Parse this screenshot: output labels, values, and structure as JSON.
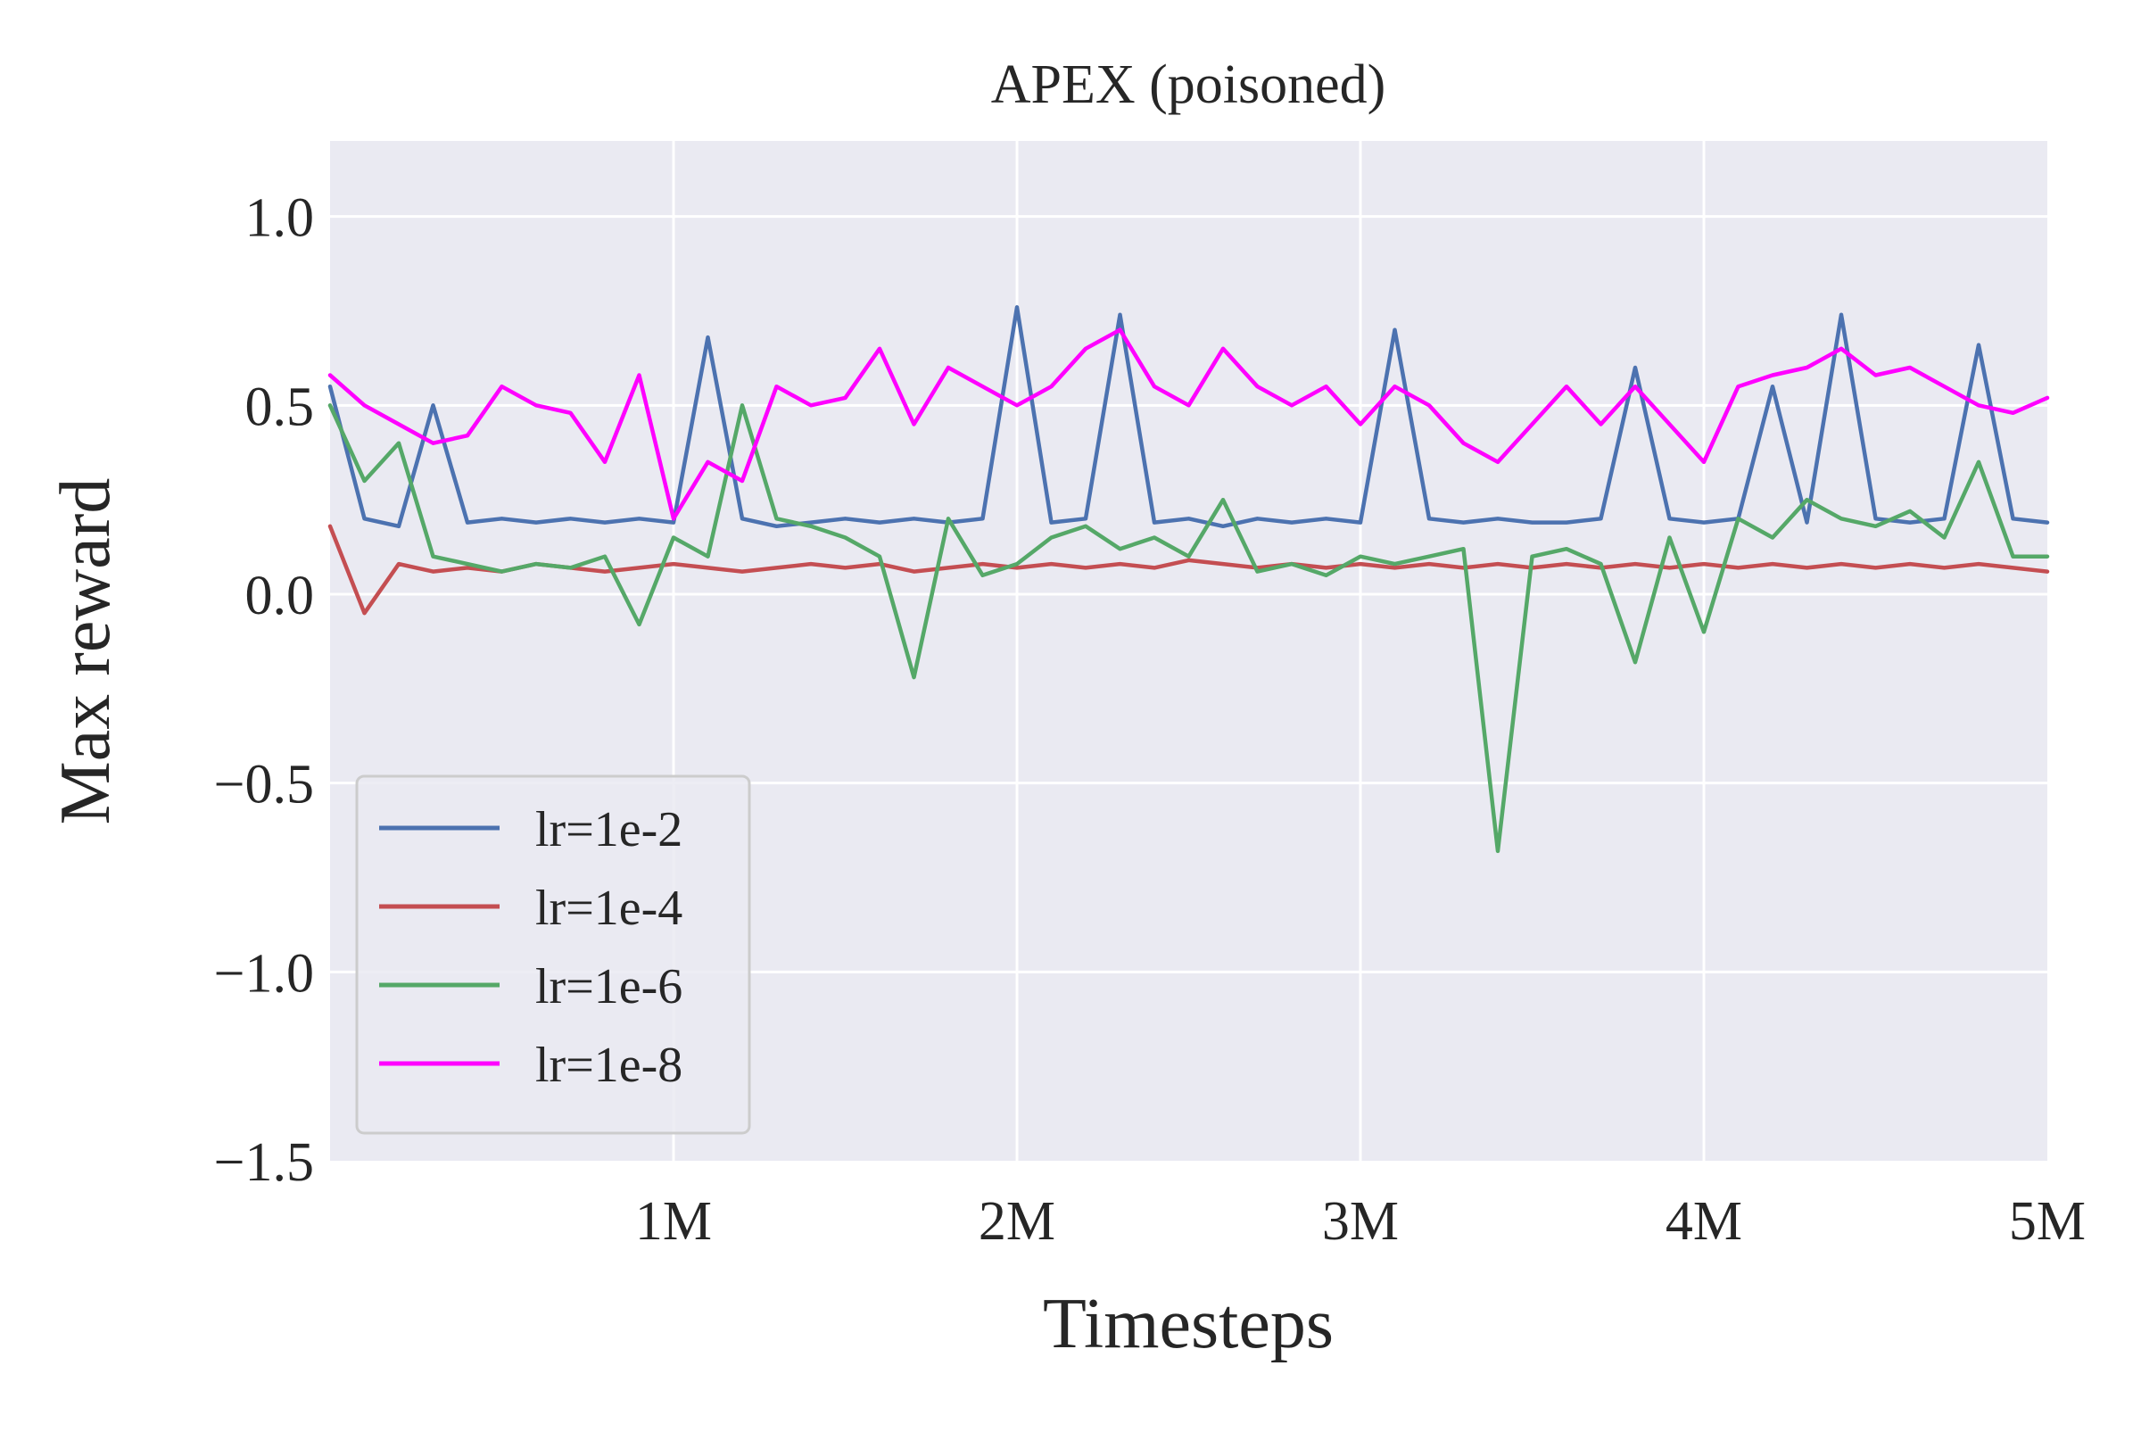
{
  "chart_data": {
    "type": "line",
    "title": "APEX (poisoned)",
    "xlabel": "Timesteps",
    "ylabel": "Max reward",
    "xlim": [
      0,
      5000000
    ],
    "ylim": [
      -1.5,
      1.2
    ],
    "grid": true,
    "legend_position": "lower-left",
    "x_ticks": [
      {
        "value": 1000000,
        "label": "1M"
      },
      {
        "value": 2000000,
        "label": "2M"
      },
      {
        "value": 3000000,
        "label": "3M"
      },
      {
        "value": 4000000,
        "label": "4M"
      },
      {
        "value": 5000000,
        "label": "5M"
      }
    ],
    "y_ticks": [
      {
        "value": 1.0,
        "label": "1.0"
      },
      {
        "value": 0.5,
        "label": "0.5"
      },
      {
        "value": 0.0,
        "label": "0.0"
      },
      {
        "value": -0.5,
        "label": "−0.5"
      },
      {
        "value": -1.0,
        "label": "−1.0"
      },
      {
        "value": -1.5,
        "label": "−1.5"
      }
    ],
    "x": [
      0,
      100000,
      200000,
      300000,
      400000,
      500000,
      600000,
      700000,
      800000,
      900000,
      1000000,
      1100000,
      1200000,
      1300000,
      1400000,
      1500000,
      1600000,
      1700000,
      1800000,
      1900000,
      2000000,
      2100000,
      2200000,
      2300000,
      2400000,
      2500000,
      2600000,
      2700000,
      2800000,
      2900000,
      3000000,
      3100000,
      3200000,
      3300000,
      3400000,
      3500000,
      3600000,
      3700000,
      3800000,
      3900000,
      4000000,
      4100000,
      4200000,
      4300000,
      4400000,
      4500000,
      4600000,
      4700000,
      4800000,
      4900000,
      5000000
    ],
    "series": [
      {
        "name": "lr=1e-2",
        "color": "#4c72b0",
        "values": [
          0.55,
          0.2,
          0.18,
          0.5,
          0.19,
          0.2,
          0.19,
          0.2,
          0.19,
          0.2,
          0.19,
          0.68,
          0.2,
          0.18,
          0.19,
          0.2,
          0.19,
          0.2,
          0.19,
          0.2,
          0.76,
          0.19,
          0.2,
          0.74,
          0.19,
          0.2,
          0.18,
          0.2,
          0.19,
          0.2,
          0.19,
          0.7,
          0.2,
          0.19,
          0.2,
          0.19,
          0.19,
          0.2,
          0.6,
          0.2,
          0.19,
          0.2,
          0.55,
          0.19,
          0.74,
          0.2,
          0.19,
          0.2,
          0.66,
          0.2,
          0.19
        ]
      },
      {
        "name": "lr=1e-4",
        "color": "#c44e52",
        "values": [
          0.18,
          -0.05,
          0.08,
          0.06,
          0.07,
          0.06,
          0.08,
          0.07,
          0.06,
          0.07,
          0.08,
          0.07,
          0.06,
          0.07,
          0.08,
          0.07,
          0.08,
          0.06,
          0.07,
          0.08,
          0.07,
          0.08,
          0.07,
          0.08,
          0.07,
          0.09,
          0.08,
          0.07,
          0.08,
          0.07,
          0.08,
          0.07,
          0.08,
          0.07,
          0.08,
          0.07,
          0.08,
          0.07,
          0.08,
          0.07,
          0.08,
          0.07,
          0.08,
          0.07,
          0.08,
          0.07,
          0.08,
          0.07,
          0.08,
          0.07,
          0.06
        ]
      },
      {
        "name": "lr=1e-6",
        "color": "#55a868",
        "values": [
          0.5,
          0.3,
          0.4,
          0.1,
          0.08,
          0.06,
          0.08,
          0.07,
          0.1,
          -0.08,
          0.15,
          0.1,
          0.5,
          0.2,
          0.18,
          0.15,
          0.1,
          -0.22,
          0.2,
          0.05,
          0.08,
          0.15,
          0.18,
          0.12,
          0.15,
          0.1,
          0.25,
          0.06,
          0.08,
          0.05,
          0.1,
          0.08,
          0.1,
          0.12,
          -0.68,
          0.1,
          0.12,
          0.08,
          -0.18,
          0.15,
          -0.1,
          0.2,
          0.15,
          0.25,
          0.2,
          0.18,
          0.22,
          0.15,
          0.35,
          0.1,
          0.1
        ]
      },
      {
        "name": "lr=1e-8",
        "color": "#ff00ff",
        "values": [
          0.58,
          0.5,
          0.45,
          0.4,
          0.42,
          0.55,
          0.5,
          0.48,
          0.35,
          0.58,
          0.2,
          0.35,
          0.3,
          0.55,
          0.5,
          0.52,
          0.65,
          0.45,
          0.6,
          0.55,
          0.5,
          0.55,
          0.65,
          0.7,
          0.55,
          0.5,
          0.65,
          0.55,
          0.5,
          0.55,
          0.45,
          0.55,
          0.5,
          0.4,
          0.35,
          0.45,
          0.55,
          0.45,
          0.55,
          0.45,
          0.35,
          0.55,
          0.58,
          0.6,
          0.65,
          0.58,
          0.6,
          0.55,
          0.5,
          0.48,
          0.52
        ]
      }
    ]
  }
}
